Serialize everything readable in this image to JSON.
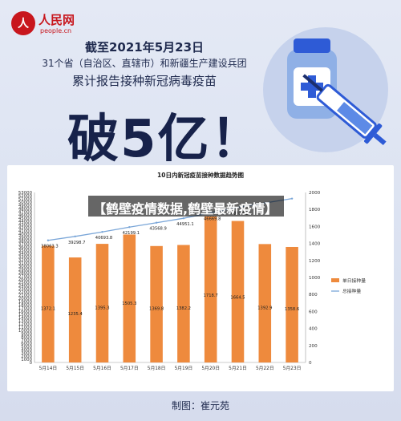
{
  "brand": {
    "name": "人民网",
    "url": "people.cn",
    "accent": "#c8161d"
  },
  "header": {
    "line1": "截至2021年5月23日",
    "line2": "31个省（自治区、直辖市）和新疆生产建设兵团",
    "line3": "累计报告接种新冠病毒疫苗",
    "big_title": "破5亿！"
  },
  "banner": {
    "text": "【鹤壁疫情数据,鹤壁最新疫情】"
  },
  "credit": "制图：崔元苑",
  "chart_data": {
    "type": "bar",
    "title": "10日内新冠疫苗接种数据趋势图",
    "categories": [
      "5月14日",
      "5月15日",
      "5月16日",
      "5月17日",
      "5月18日",
      "5月19日",
      "5月20日",
      "5月21日",
      "5月22日",
      "5月23日"
    ],
    "series": [
      {
        "name": "单日接种量",
        "type": "bar",
        "axis": "right",
        "color": "#ee8a3d",
        "values": [
          1372.1,
          1235.4,
          1395.3,
          1505.3,
          1369.8,
          1382.2,
          1718.7,
          1664.5,
          1392.9,
          1358.6
        ],
        "labels": [
          "1372.1",
          "1235.4",
          "1395.3",
          "1505.3",
          "1369.8",
          "1382.2",
          "1718.7",
          "1664.5",
          "1392.9",
          "1358.6"
        ]
      },
      {
        "name": "总接种量",
        "type": "line",
        "axis": "left",
        "color": "#7aa6d8",
        "values": [
          38063.3,
          39298.7,
          40693.8,
          42199.1,
          43568.9,
          44951.1,
          46669.8,
          48334.2,
          49727.1,
          51085.7
        ],
        "labels": [
          "38063.3",
          "39298.7",
          "40693.8",
          "42199.1",
          "43568.9",
          "44951.1",
          "46669.8",
          "48334.2",
          "",
          ""
        ]
      }
    ],
    "y_left": {
      "min": 0,
      "max": 53000,
      "step": 1000,
      "ticks": [
        "0",
        "1000",
        "2000",
        "3000",
        "4000",
        "5000",
        "6000",
        "7000",
        "8000",
        "9000",
        "10000",
        "11000",
        "12000",
        "13000",
        "14000",
        "15000",
        "16000",
        "17000",
        "18000",
        "19000",
        "20000",
        "21000",
        "22000",
        "23000",
        "24000",
        "25000",
        "26000",
        "27000",
        "28000",
        "29000",
        "30000",
        "31000",
        "32000",
        "33000",
        "34000",
        "35000",
        "36000",
        "37000",
        "38000",
        "39000",
        "40000",
        "41000",
        "42000",
        "43000",
        "44000",
        "45000",
        "46000",
        "47000",
        "48000",
        "49000",
        "50000",
        "51000",
        "52000",
        "53000"
      ]
    },
    "y_right": {
      "min": 0,
      "max": 2000,
      "step": 200,
      "ticks": [
        "0",
        "200",
        "400",
        "600",
        "800",
        "1000",
        "1200",
        "1400",
        "1600",
        "1800",
        "2000"
      ]
    },
    "legend_position": "right",
    "grid": false
  }
}
